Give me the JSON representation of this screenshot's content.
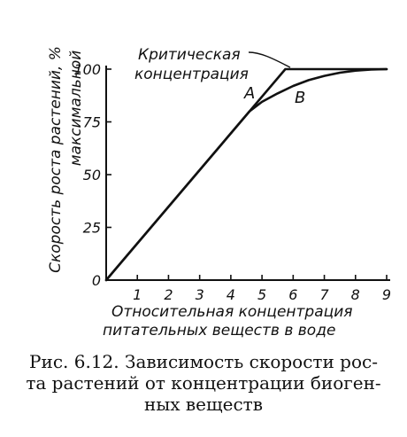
{
  "chart_data": {
    "type": "line",
    "xlabel_line1": "Относительная концентрация",
    "xlabel_line2": "питательных веществ в воде",
    "ylabel_line1": "Скорость роста растений, %",
    "ylabel_line2": "максимальной",
    "x_ticks": [
      "1",
      "2",
      "3",
      "4",
      "5",
      "6",
      "7",
      "8",
      "9"
    ],
    "y_ticks": [
      "0",
      "25",
      "50",
      "75",
      "100"
    ],
    "xlim": [
      0,
      9
    ],
    "ylim": [
      0,
      100
    ],
    "grid": false,
    "series": [
      {
        "name": "A",
        "x": [
          0,
          5.75,
          9
        ],
        "y": [
          0,
          100,
          100
        ]
      },
      {
        "name": "B",
        "x": [
          0,
          4.6,
          5.0,
          5.5,
          6.0,
          6.5,
          7.0,
          7.5,
          8.0,
          8.5,
          9.0
        ],
        "y": [
          0,
          80,
          84.5,
          88.5,
          92,
          94.8,
          96.8,
          98.3,
          99.3,
          99.8,
          100
        ]
      }
    ],
    "annotations": [
      {
        "text": "Критическая",
        "target_x": 5.75,
        "target_y": 100
      },
      {
        "text": "концентрация"
      }
    ]
  },
  "caption": {
    "line1": "Рис. 6.12. Зависимость скорости рос-",
    "line2": "та растений от концентрации биоген-",
    "line3": "ных веществ"
  }
}
